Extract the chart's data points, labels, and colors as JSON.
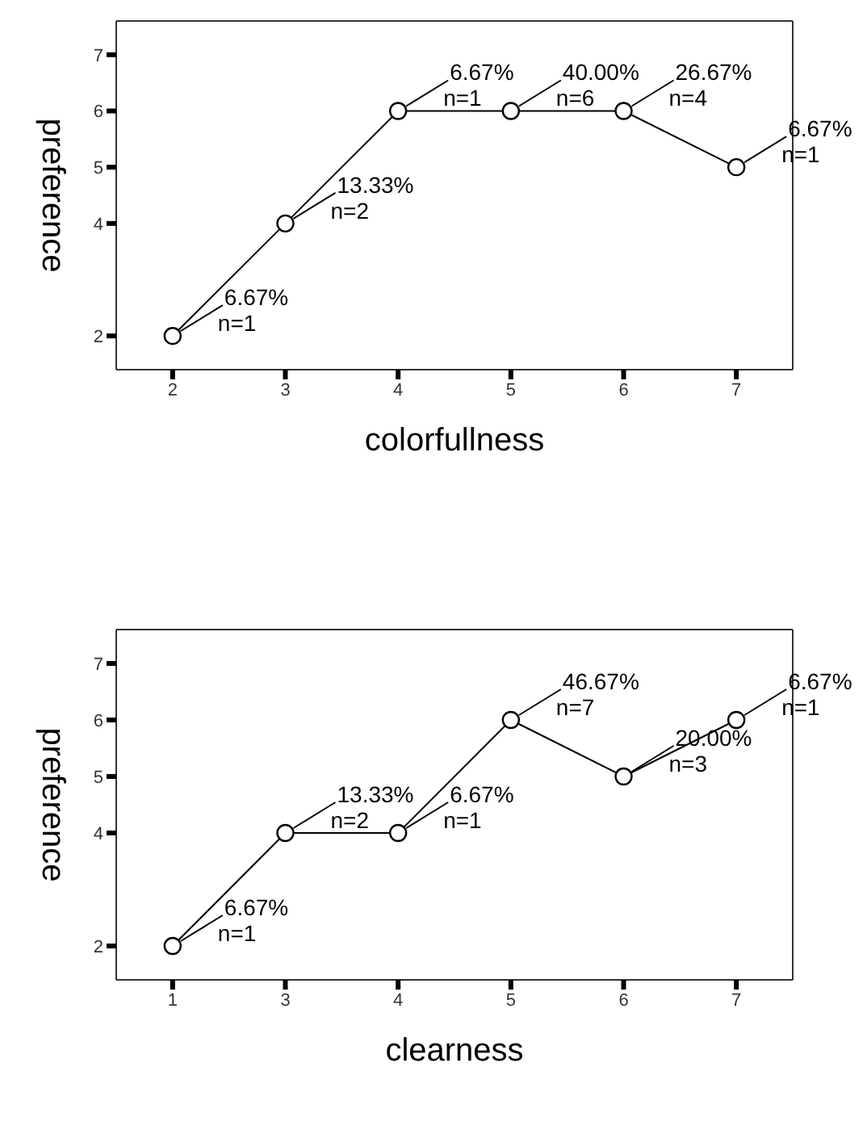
{
  "chart_data": [
    {
      "type": "line",
      "xlabel": "colorfullness",
      "ylabel": "preference",
      "categories": [
        "2",
        "3",
        "4",
        "5",
        "6",
        "7"
      ],
      "series": [
        {
          "color": "#000000",
          "values": [
            2,
            4,
            6,
            6,
            6,
            5
          ]
        }
      ],
      "ylim": [
        1.4,
        7.6
      ],
      "yticks": [
        2,
        4,
        5,
        6,
        7
      ],
      "marker": "circle",
      "line_style": "solid",
      "annotations": [
        {
          "text": "6.67%\nn=1",
          "x": "2",
          "y": 2
        },
        {
          "text": "13.33%\nn=2",
          "x": "3",
          "y": 4
        },
        {
          "text": "6.67%\nn=1",
          "x": "4",
          "y": 6
        },
        {
          "text": "40.00%\nn=6",
          "x": "5",
          "y": 6
        },
        {
          "text": "26.67%\nn=4",
          "x": "6",
          "y": 6
        },
        {
          "text": "6.67%\nn=1",
          "x": "7",
          "y": 5
        }
      ]
    },
    {
      "type": "line",
      "xlabel": "clearness",
      "ylabel": "preference",
      "categories": [
        "1",
        "3",
        "4",
        "5",
        "6",
        "7"
      ],
      "series": [
        {
          "color": "#000000",
          "values": [
            2,
            4,
            4,
            6,
            5,
            6
          ]
        }
      ],
      "ylim": [
        1.4,
        7.6
      ],
      "yticks": [
        2,
        4,
        5,
        6,
        7
      ],
      "marker": "circle",
      "line_style": "solid",
      "annotations": [
        {
          "text": "6.67%\nn=1",
          "x": "1",
          "y": 2
        },
        {
          "text": "13.33%\nn=2",
          "x": "3",
          "y": 4
        },
        {
          "text": "6.67%\nn=1",
          "x": "4",
          "y": 4
        },
        {
          "text": "46.67%\nn=7",
          "x": "5",
          "y": 6
        },
        {
          "text": "20.00%\nn=3",
          "x": "6",
          "y": 5
        },
        {
          "text": "6.67%\nn=1",
          "x": "7",
          "y": 6
        }
      ]
    }
  ]
}
